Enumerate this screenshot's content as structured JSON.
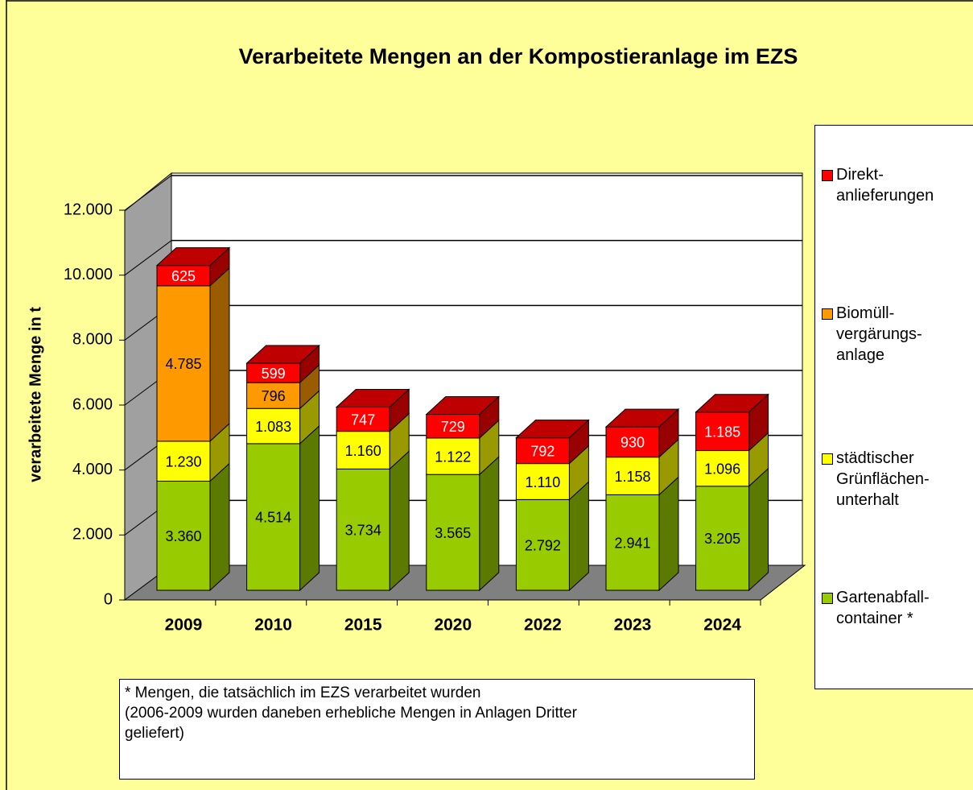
{
  "chart_data": {
    "type": "bar3d_stacked",
    "title": "Verarbeitete Mengen an der Kompostieranlage  im EZS",
    "ylabel": "verarbeitete Menge in t",
    "categories": [
      "2009",
      "2010",
      "2015",
      "2020",
      "2022",
      "2023",
      "2024"
    ],
    "series": [
      {
        "name": "Gartenabfall-\ncontainer *",
        "color": "#99cc00",
        "values": [
          3360,
          4514,
          3734,
          3565,
          2792,
          2941,
          3205
        ],
        "value_labels": [
          "3.360",
          "4.514",
          "3.734",
          "3.565",
          "2.792",
          "2.941",
          "3.205"
        ]
      },
      {
        "name": "städtischer\nGrünflächen-\nunterhalt",
        "color": "#ffff00",
        "values": [
          1230,
          1083,
          1160,
          1122,
          1110,
          1158,
          1096
        ],
        "value_labels": [
          "1.230",
          "1.083",
          "1.160",
          "1.122",
          "1.110",
          "1.158",
          "1.096"
        ]
      },
      {
        "name": "Biomüll-\nvergärungs-\nanlage",
        "color": "#ff9900",
        "values": [
          4785,
          796,
          null,
          null,
          null,
          null,
          null
        ],
        "value_labels": [
          "4.785",
          "796",
          null,
          null,
          null,
          null,
          null
        ]
      },
      {
        "name": "Direkt-\nanlieferungen",
        "color": "#ff0000",
        "values": [
          625,
          599,
          747,
          729,
          792,
          930,
          1185
        ],
        "value_labels": [
          "625",
          "599",
          "747",
          "729",
          "792",
          "930",
          "1.185"
        ]
      }
    ],
    "ylim": [
      0,
      12000
    ],
    "yticks": [
      0,
      {
        "value": 2000,
        "label": "2.000"
      },
      {
        "value": 4000,
        "label": "4.000"
      },
      {
        "value": 6000,
        "label": "6.000"
      },
      {
        "value": 8000,
        "label": "8.000"
      },
      {
        "value": 10000,
        "label": "10.000"
      },
      {
        "value": 12000,
        "label": "12.000"
      }
    ],
    "grid": true,
    "legend": "right",
    "footnote": "* Mengen, die tatsächlich im EZS verarbeitet wurden\n(2006-2009 wurden daneben erhebliche Mengen in Anlagen Dritter\ngeliefert)"
  }
}
